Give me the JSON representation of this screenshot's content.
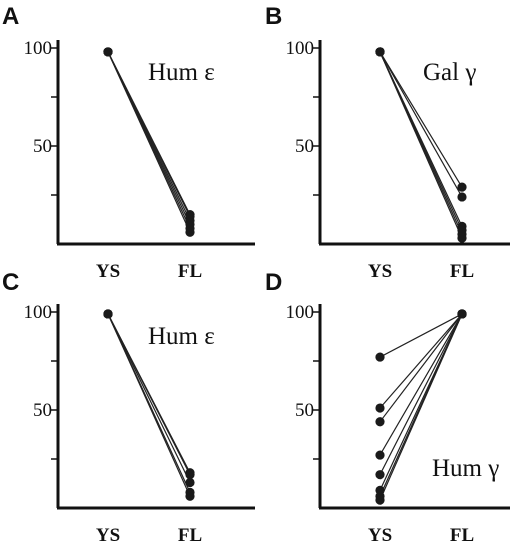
{
  "figure": {
    "panels": [
      "A",
      "B",
      "C",
      "D"
    ]
  },
  "chart_data": [
    {
      "panel": "A",
      "type": "line",
      "label": "Hum ε",
      "categories": [
        "YS",
        "FL"
      ],
      "yticks": [
        50,
        100
      ],
      "ylim": [
        0,
        100
      ],
      "grid": false,
      "series": [
        {
          "values": [
            98,
            6
          ]
        },
        {
          "values": [
            98,
            8
          ]
        },
        {
          "values": [
            98,
            10
          ]
        },
        {
          "values": [
            98,
            12
          ]
        },
        {
          "values": [
            98,
            14
          ]
        },
        {
          "values": [
            98,
            15
          ]
        }
      ]
    },
    {
      "panel": "B",
      "type": "line",
      "label": "Gal γ",
      "categories": [
        "YS",
        "FL"
      ],
      "yticks": [
        50,
        100
      ],
      "ylim": [
        0,
        100
      ],
      "grid": false,
      "series": [
        {
          "values": [
            98,
            29
          ]
        },
        {
          "values": [
            98,
            24
          ]
        },
        {
          "values": [
            98,
            9
          ]
        },
        {
          "values": [
            98,
            7
          ]
        },
        {
          "values": [
            98,
            5
          ]
        },
        {
          "values": [
            98,
            3
          ]
        }
      ]
    },
    {
      "panel": "C",
      "type": "line",
      "label": "Hum ε",
      "categories": [
        "YS",
        "FL"
      ],
      "yticks": [
        50,
        100
      ],
      "ylim": [
        0,
        100
      ],
      "grid": false,
      "series": [
        {
          "values": [
            99,
            18
          ]
        },
        {
          "values": [
            99,
            17
          ]
        },
        {
          "values": [
            99,
            13
          ]
        },
        {
          "values": [
            99,
            8
          ]
        },
        {
          "values": [
            99,
            6
          ]
        }
      ]
    },
    {
      "panel": "D",
      "type": "line",
      "label": "Hum γ",
      "categories": [
        "YS",
        "FL"
      ],
      "yticks": [
        50,
        100
      ],
      "ylim": [
        0,
        100
      ],
      "grid": false,
      "series": [
        {
          "values": [
            77,
            99
          ]
        },
        {
          "values": [
            51,
            99
          ]
        },
        {
          "values": [
            44,
            99
          ]
        },
        {
          "values": [
            27,
            99
          ]
        },
        {
          "values": [
            17,
            99
          ]
        },
        {
          "values": [
            9,
            99
          ]
        },
        {
          "values": [
            6,
            99
          ]
        },
        {
          "values": [
            4,
            99
          ]
        }
      ]
    }
  ]
}
